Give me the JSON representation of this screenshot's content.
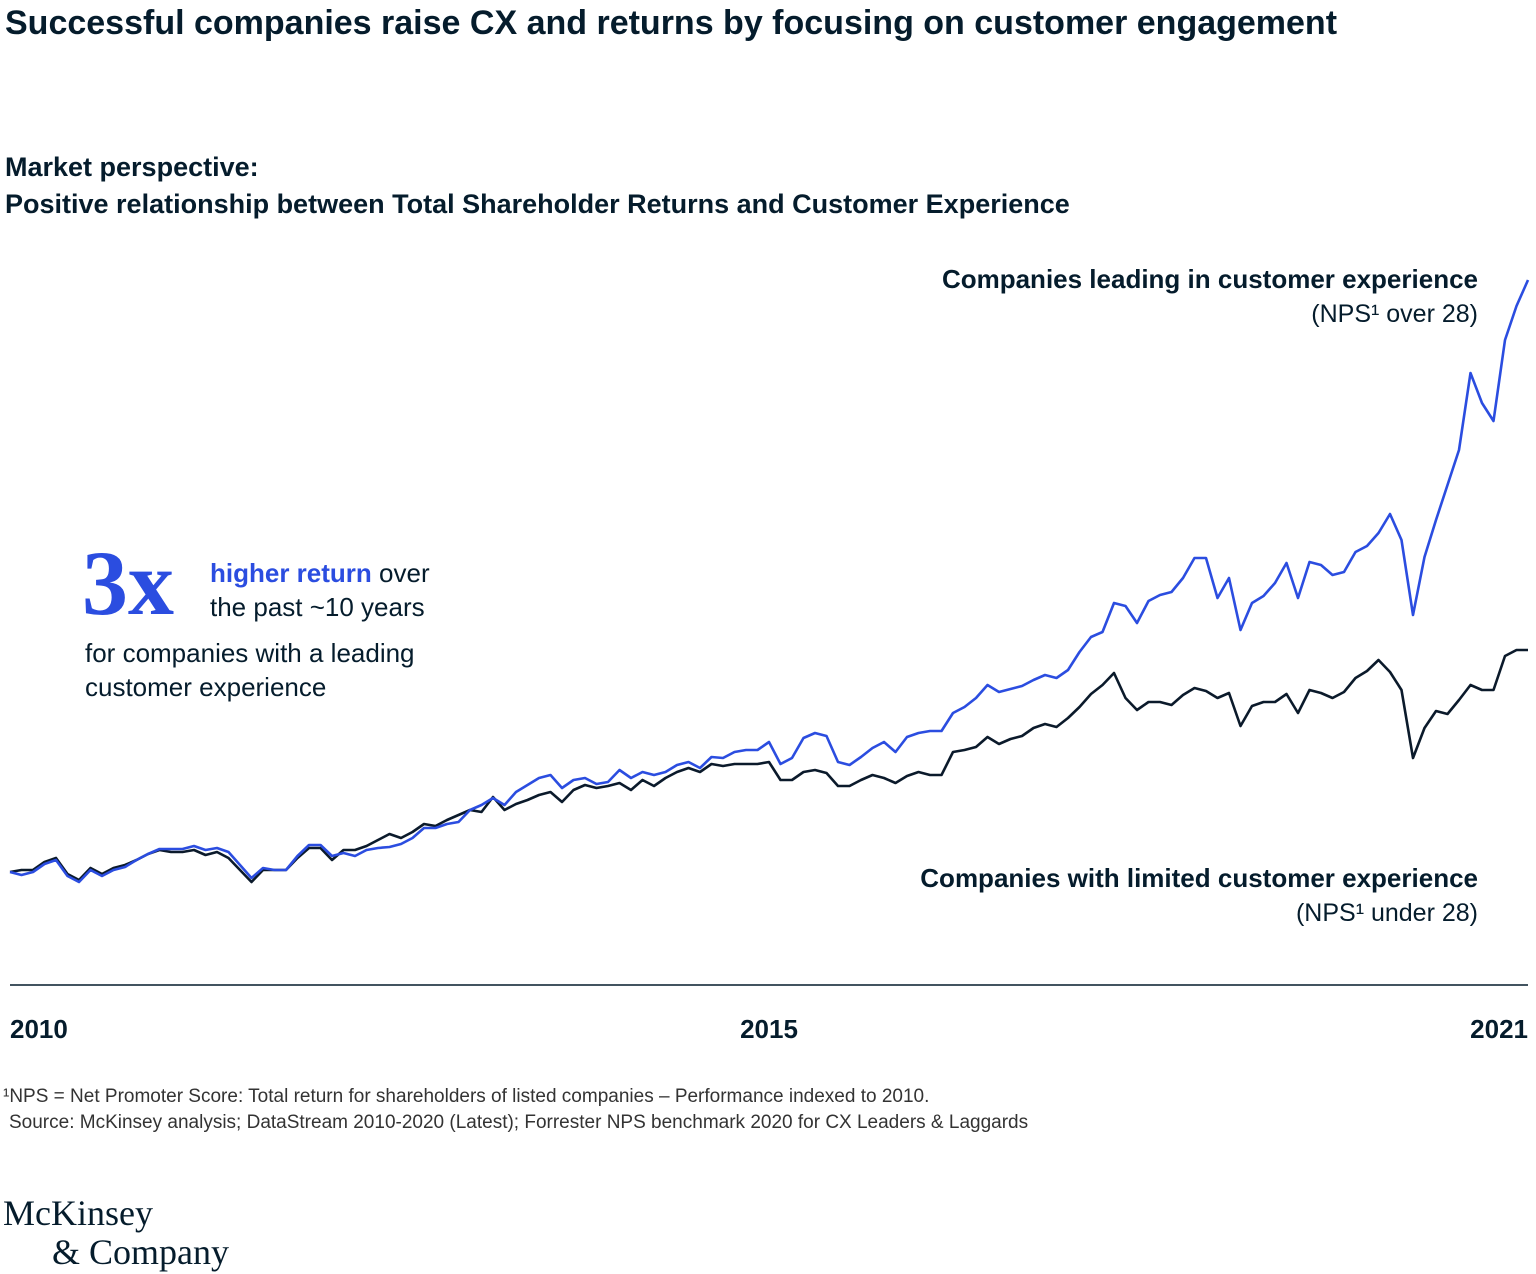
{
  "title": "Successful companies raise CX and returns by focusing on customer engagement",
  "subtitle": [
    "Market perspective:",
    "Positive relationship between Total Shareholder Returns and Customer Experience"
  ],
  "callout": {
    "multiple": "3x",
    "highlight": "higher return",
    "line1_rest": "over",
    "line2": "the past ~10 years",
    "line3": "for companies with a leading",
    "line4": "customer experience"
  },
  "footnotes": [
    "¹NPS = Net Promoter Score: Total return for shareholders of listed companies – Performance indexed to 2010.",
    "Source: McKinsey analysis; DataStream 2010-2020 (Latest); Forrester NPS benchmark 2020 for CX Leaders & Laggards"
  ],
  "logo": [
    "McKinsey",
    "& Company"
  ],
  "chart_data": {
    "type": "line",
    "ylim": [
      0,
      700
    ],
    "categories": [
      "2010",
      null,
      null,
      null,
      null,
      null,
      null,
      null,
      null,
      null,
      null,
      null,
      null,
      null,
      null,
      null,
      null,
      null,
      null,
      null,
      null,
      null,
      null,
      null,
      null,
      null,
      null,
      null,
      null,
      null,
      null,
      null,
      null,
      null,
      null,
      null,
      null,
      null,
      null,
      null,
      null,
      null,
      null,
      null,
      null,
      null,
      null,
      null,
      null,
      null,
      null,
      null,
      null,
      null,
      null,
      null,
      null,
      null,
      null,
      null,
      null,
      null,
      null,
      null,
      null,
      null,
      "2015",
      null,
      null,
      null,
      null,
      null,
      null,
      null,
      null,
      null,
      null,
      null,
      null,
      null,
      null,
      null,
      null,
      null,
      null,
      null,
      null,
      null,
      null,
      null,
      null,
      null,
      null,
      null,
      null,
      null,
      null,
      null,
      null,
      null,
      null,
      null,
      null,
      null,
      null,
      null,
      null,
      null,
      null,
      null,
      null,
      null,
      null,
      null,
      null,
      null,
      null,
      null,
      null,
      null,
      null,
      null,
      null,
      null,
      null,
      null,
      null,
      null,
      null,
      null,
      null,
      null,
      "2021"
    ],
    "series": [
      {
        "name": "Companies leading in customer experience",
        "note": "(NPS¹ over 28)",
        "color": "#2b4de0",
        "values": [
          100,
          97,
          100,
          108,
          112,
          96,
          90,
          102,
          96,
          102,
          105,
          112,
          118,
          123,
          123,
          123,
          126,
          122,
          124,
          120,
          107,
          94,
          104,
          102,
          102,
          116,
          127,
          127,
          116,
          119,
          116,
          122,
          124,
          125,
          128,
          134,
          144,
          144,
          148,
          150,
          162,
          167,
          174,
          167,
          180,
          187,
          194,
          197,
          184,
          192,
          194,
          188,
          190,
          202,
          194,
          200,
          197,
          200,
          207,
          210,
          204,
          215,
          214,
          220,
          222,
          222,
          230,
          208,
          214,
          234,
          239,
          236,
          210,
          207,
          215,
          224,
          230,
          220,
          235,
          239,
          241,
          241,
          259,
          265,
          274,
          287,
          280,
          283,
          286,
          292,
          297,
          294,
          302,
          320,
          335,
          340,
          369,
          366,
          349,
          371,
          377,
          380,
          394,
          414,
          414,
          374,
          394,
          342,
          369,
          376,
          389,
          409,
          374,
          410,
          407,
          397,
          400,
          420,
          426,
          439,
          458,
          432,
          357,
          415,
          452,
          487,
          522,
          599,
          569,
          551,
          632,
          666,
          692
        ]
      },
      {
        "name": "Companies with limited customer experience",
        "note": "(NPS¹ under 28)",
        "color": "#0b1a2b",
        "values": [
          100,
          102,
          102,
          110,
          114,
          98,
          92,
          104,
          98,
          104,
          107,
          112,
          118,
          122,
          120,
          120,
          122,
          117,
          120,
          114,
          102,
          90,
          102,
          102,
          102,
          114,
          124,
          124,
          112,
          122,
          122,
          126,
          132,
          138,
          134,
          140,
          148,
          146,
          152,
          157,
          162,
          160,
          175,
          162,
          168,
          172,
          177,
          180,
          170,
          182,
          187,
          184,
          186,
          189,
          182,
          192,
          186,
          194,
          200,
          204,
          200,
          208,
          206,
          208,
          208,
          208,
          210,
          192,
          192,
          200,
          202,
          199,
          186,
          186,
          192,
          197,
          194,
          189,
          196,
          200,
          197,
          197,
          220,
          222,
          225,
          235,
          228,
          233,
          236,
          244,
          248,
          245,
          254,
          265,
          278,
          287,
          299,
          274,
          262,
          270,
          270,
          267,
          277,
          284,
          281,
          274,
          279,
          246,
          266,
          270,
          270,
          278,
          259,
          282,
          279,
          274,
          280,
          294,
          301,
          312,
          300,
          282,
          214,
          244,
          261,
          258,
          272,
          287,
          282,
          282,
          316,
          322,
          322
        ]
      }
    ]
  }
}
